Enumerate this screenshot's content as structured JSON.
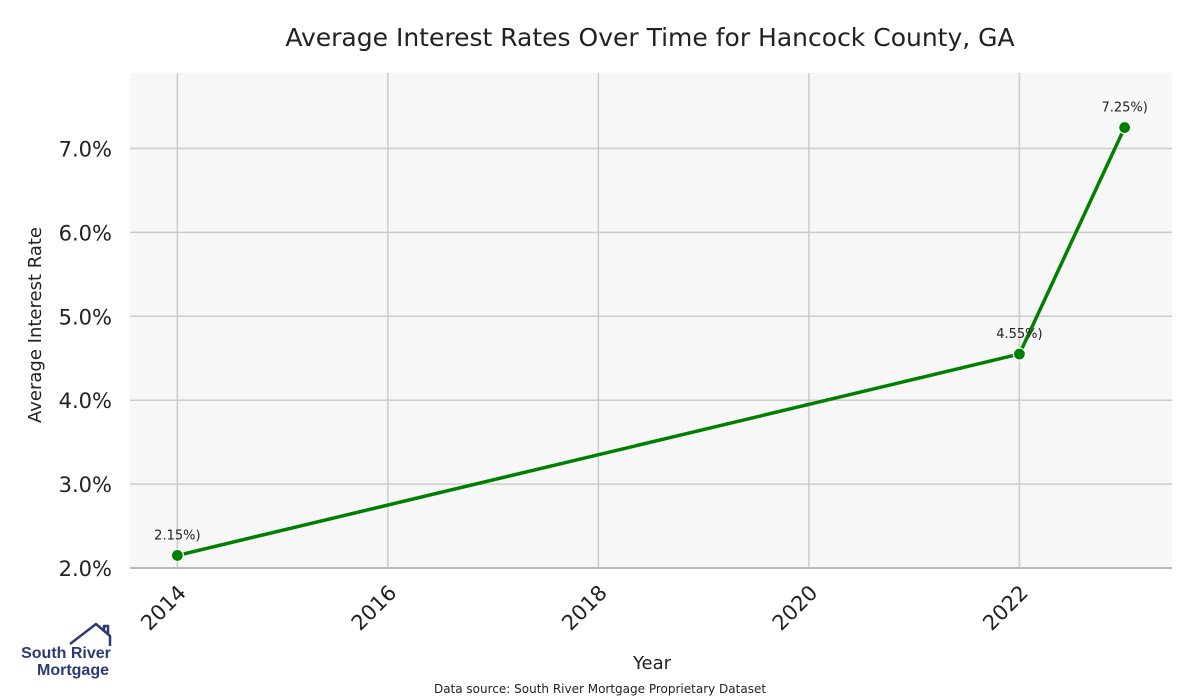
{
  "chart_data": {
    "type": "line",
    "title": "Average Interest Rates Over Time for Hancock County, GA",
    "xlabel": "Year",
    "ylabel": "Average Interest Rate",
    "x": [
      2014,
      2022,
      2023
    ],
    "series": [
      {
        "values": [
          2.15,
          4.55,
          7.25
        ],
        "labels": [
          "2.15%)",
          "4.55%)",
          "7.25%)"
        ],
        "color": "#008000"
      }
    ],
    "xlim": [
      2013.55,
      2023.45
    ],
    "ylim": [
      2.0,
      7.9
    ],
    "xticks": [
      {
        "value": 2014,
        "label": "2014"
      },
      {
        "value": 2016,
        "label": "2016"
      },
      {
        "value": 2018,
        "label": "2018"
      },
      {
        "value": 2020,
        "label": "2020"
      },
      {
        "value": 2022,
        "label": "2022"
      }
    ],
    "yticks": [
      {
        "value": 2.0,
        "label": "2.0%"
      },
      {
        "value": 3.0,
        "label": "3.0%"
      },
      {
        "value": 4.0,
        "label": "4.0%"
      },
      {
        "value": 5.0,
        "label": "5.0%"
      },
      {
        "value": 6.0,
        "label": "6.0%"
      },
      {
        "value": 7.0,
        "label": "7.0%"
      }
    ],
    "grid": true,
    "background": "#f7f7f7",
    "grid_color": "#cccccc"
  },
  "source_note": "Data source: South River Mortgage Proprietary Dataset",
  "logo": {
    "line1": "South River",
    "line2": "Mortgage",
    "color": "#2b3a73"
  }
}
